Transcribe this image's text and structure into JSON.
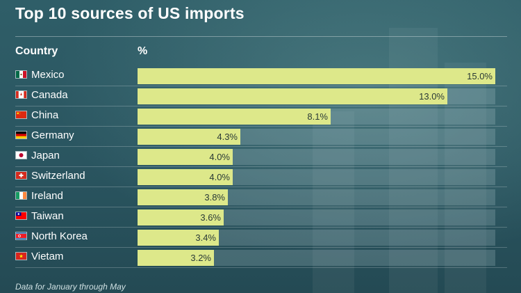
{
  "chart_data": {
    "type": "bar",
    "orientation": "horizontal",
    "title": "Top 10 sources of US imports",
    "category_header": "Country",
    "value_header": "%",
    "categories": [
      "Mexico",
      "Canada",
      "China",
      "Germany",
      "Japan",
      "Switzerland",
      "Ireland",
      "Taiwan",
      "North Korea",
      "Vietam"
    ],
    "values": [
      15.0,
      13.0,
      8.1,
      4.3,
      4.0,
      4.0,
      3.8,
      3.6,
      3.4,
      3.2
    ],
    "value_labels": [
      "15.0%",
      "13.0%",
      "8.1%",
      "4.3%",
      "4.0%",
      "4.0%",
      "3.8%",
      "3.6%",
      "3.4%",
      "3.2%"
    ],
    "xlim": [
      0,
      15
    ],
    "bar_color": "#dde88a",
    "footnote": "Data for January through May"
  },
  "flags": [
    "mexico-flag-icon",
    "canada-flag-icon",
    "china-flag-icon",
    "germany-flag-icon",
    "japan-flag-icon",
    "switzerland-flag-icon",
    "ireland-flag-icon",
    "taiwan-flag-icon",
    "north-korea-flag-icon",
    "vietnam-flag-icon"
  ]
}
